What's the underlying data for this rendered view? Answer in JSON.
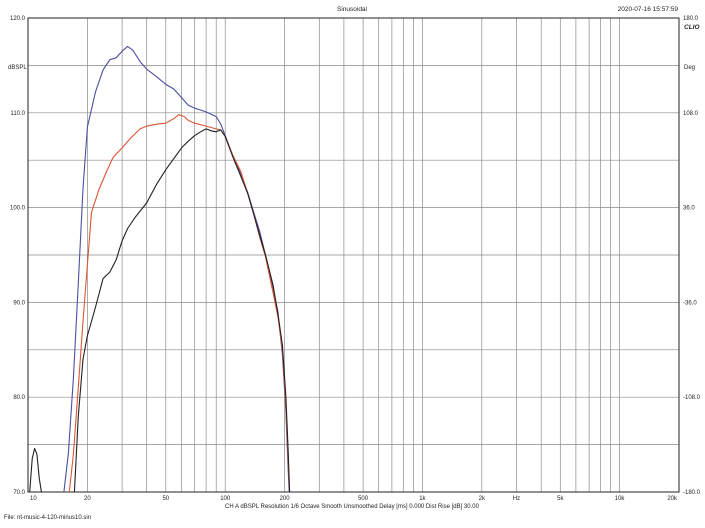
{
  "header": {
    "title": "Sinusoidal",
    "timestamp": "2020-07-16 15:57:59",
    "brand": "CLIO"
  },
  "footer": {
    "file": "File: nt-music-4-120-minus10.sin",
    "settings": "CH A   dBSPL   Resolution 1/6 Octave   Smooth Unsmoothed   Delay [ms] 0.000   Dist Rise [dB] 30.00"
  },
  "chart_data": {
    "type": "line",
    "title": "Sinusoidal",
    "ylabel": "dBSPL",
    "y2label": "Deg",
    "xlabel": "Hz",
    "xscale": "log",
    "xlim": [
      10,
      20000
    ],
    "ylim": [
      70,
      120
    ],
    "y2lim": [
      -180,
      180
    ],
    "grid": true,
    "x_tick_labels": [
      {
        "value": 10,
        "label": "10"
      },
      {
        "value": 20,
        "label": "20"
      },
      {
        "value": 50,
        "label": "50"
      },
      {
        "value": 100,
        "label": "100"
      },
      {
        "value": 200,
        "label": "200"
      },
      {
        "value": 500,
        "label": "500"
      },
      {
        "value": 1000,
        "label": "1k"
      },
      {
        "value": 2000,
        "label": "2k"
      },
      {
        "value": 5000,
        "label": "5k"
      },
      {
        "value": 10000,
        "label": "10k"
      },
      {
        "value": 20000,
        "label": "20k"
      }
    ],
    "x_unit_label": {
      "value": 3000,
      "label": "Hz"
    },
    "y_tick_labels": [
      {
        "value": 120,
        "label": "120.0"
      },
      {
        "value": 110,
        "label": "110.0"
      },
      {
        "value": 100,
        "label": "100.0"
      },
      {
        "value": 90,
        "label": "90.0"
      },
      {
        "value": 80,
        "label": "80.0"
      },
      {
        "value": 70,
        "label": "70.0"
      }
    ],
    "y2_tick_labels": [
      {
        "value": 180,
        "label": "180.0"
      },
      {
        "value": 108,
        "label": "108.0"
      },
      {
        "value": 36,
        "label": "36.0"
      },
      {
        "value": -36,
        "label": "-36.0"
      },
      {
        "value": -108,
        "label": "-108.0"
      },
      {
        "value": -180,
        "label": "-180.0"
      }
    ],
    "series": [
      {
        "color": "#4a4fa0",
        "points": [
          [
            15.2,
            70
          ],
          [
            16,
            74
          ],
          [
            17,
            82
          ],
          [
            18,
            92
          ],
          [
            19,
            102
          ],
          [
            20,
            108.5
          ],
          [
            22,
            112.2
          ],
          [
            24,
            114.5
          ],
          [
            26,
            115.6
          ],
          [
            28,
            115.8
          ],
          [
            30,
            116.5
          ],
          [
            32,
            117.0
          ],
          [
            34,
            116.6
          ],
          [
            37,
            115.4
          ],
          [
            40,
            114.6
          ],
          [
            45,
            113.8
          ],
          [
            50,
            113.0
          ],
          [
            55,
            112.5
          ],
          [
            60,
            111.6
          ],
          [
            65,
            110.8
          ],
          [
            70,
            110.5
          ],
          [
            80,
            110.1
          ],
          [
            90,
            109.6
          ],
          [
            95,
            108.8
          ],
          [
            100,
            107.6
          ],
          [
            110,
            105.3
          ],
          [
            120,
            103.6
          ],
          [
            130,
            101.6
          ],
          [
            140,
            99.4
          ],
          [
            150,
            97.4
          ],
          [
            160,
            95.0
          ],
          [
            175,
            91.5
          ],
          [
            185,
            89.0
          ],
          [
            195,
            84.5
          ],
          [
            203,
            78.5
          ],
          [
            208,
            73
          ],
          [
            211,
            70
          ]
        ]
      },
      {
        "color": "#dd5533",
        "points": [
          [
            16.2,
            70
          ],
          [
            17,
            74
          ],
          [
            18,
            81
          ],
          [
            19,
            88
          ],
          [
            20,
            94
          ],
          [
            21,
            99.5
          ],
          [
            23,
            102.0
          ],
          [
            25,
            103.8
          ],
          [
            27,
            105.3
          ],
          [
            30,
            106.3
          ],
          [
            33,
            107.3
          ],
          [
            37,
            108.3
          ],
          [
            40,
            108.6
          ],
          [
            45,
            108.8
          ],
          [
            50,
            108.9
          ],
          [
            55,
            109.4
          ],
          [
            58,
            109.8
          ],
          [
            62,
            109.6
          ],
          [
            65,
            109.2
          ],
          [
            70,
            108.9
          ],
          [
            80,
            108.6
          ],
          [
            90,
            108.3
          ],
          [
            95,
            108.2
          ],
          [
            100,
            107.5
          ],
          [
            110,
            105.4
          ],
          [
            120,
            103.8
          ],
          [
            130,
            101.5
          ],
          [
            140,
            99.2
          ],
          [
            150,
            96.8
          ],
          [
            160,
            94.8
          ],
          [
            175,
            91.0
          ],
          [
            185,
            88.5
          ],
          [
            195,
            85.0
          ],
          [
            203,
            79.0
          ],
          [
            209,
            73
          ],
          [
            212,
            70
          ]
        ]
      },
      {
        "color": "#222222",
        "points": [
          [
            17.2,
            70
          ],
          [
            18,
            78
          ],
          [
            19,
            84
          ],
          [
            20,
            86.5
          ],
          [
            21,
            88.0
          ],
          [
            22,
            89.5
          ],
          [
            23,
            91.0
          ],
          [
            24,
            92.5
          ],
          [
            26,
            93.2
          ],
          [
            28,
            94.5
          ],
          [
            30,
            96.5
          ],
          [
            32,
            97.8
          ],
          [
            35,
            99.0
          ],
          [
            40,
            100.5
          ],
          [
            45,
            102.5
          ],
          [
            50,
            104.0
          ],
          [
            55,
            105.2
          ],
          [
            60,
            106.3
          ],
          [
            65,
            107.0
          ],
          [
            70,
            107.6
          ],
          [
            75,
            108.0
          ],
          [
            80,
            108.3
          ],
          [
            85,
            108.1
          ],
          [
            90,
            108.0
          ],
          [
            95,
            108.2
          ],
          [
            100,
            107.5
          ],
          [
            110,
            105.2
          ],
          [
            120,
            103.3
          ],
          [
            130,
            101.5
          ],
          [
            140,
            99.2
          ],
          [
            150,
            97.0
          ],
          [
            160,
            95.0
          ],
          [
            175,
            91.8
          ],
          [
            185,
            88.8
          ],
          [
            195,
            85.5
          ],
          [
            203,
            80.0
          ],
          [
            209,
            74
          ],
          [
            212,
            70
          ]
        ]
      },
      {
        "color": "#222222",
        "points": [
          [
            10.2,
            70
          ],
          [
            10.5,
            73.5
          ],
          [
            10.8,
            74.6
          ],
          [
            11.1,
            74.0
          ],
          [
            11.4,
            71.5
          ],
          [
            11.7,
            70
          ]
        ]
      }
    ]
  }
}
